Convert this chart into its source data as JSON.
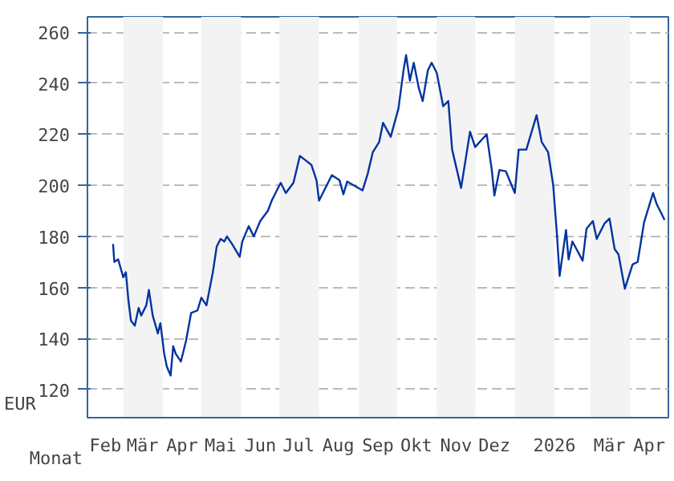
{
  "chart_data": {
    "type": "line",
    "xlabel": "Monat",
    "ylabel": "EUR",
    "x": [
      "2025-02-21",
      "2025-02-22",
      "2025-02-25",
      "2025-03-01",
      "2025-03-03",
      "2025-03-05",
      "2025-03-07",
      "2025-03-10",
      "2025-03-13",
      "2025-03-15",
      "2025-03-19",
      "2025-03-21",
      "2025-03-24",
      "2025-03-28",
      "2025-03-30",
      "2025-04-02",
      "2025-04-04",
      "2025-04-07",
      "2025-04-09",
      "2025-04-11",
      "2025-04-15",
      "2025-04-19",
      "2025-04-23",
      "2025-04-28",
      "2025-05-01",
      "2025-05-05",
      "2025-05-10",
      "2025-05-13",
      "2025-05-16",
      "2025-05-19",
      "2025-05-21",
      "2025-05-25",
      "2025-05-31",
      "2025-06-02",
      "2025-06-07",
      "2025-06-11",
      "2025-06-16",
      "2025-06-22",
      "2025-06-25",
      "2025-07-02",
      "2025-07-06",
      "2025-07-12",
      "2025-07-17",
      "2025-07-21",
      "2025-07-26",
      "2025-07-30",
      "2025-08-01",
      "2025-08-05",
      "2025-08-11",
      "2025-08-17",
      "2025-08-20",
      "2025-08-23",
      "2025-09-04",
      "2025-09-08",
      "2025-09-12",
      "2025-09-17",
      "2025-09-20",
      "2025-09-26",
      "2025-10-02",
      "2025-10-06",
      "2025-10-08",
      "2025-10-11",
      "2025-10-14",
      "2025-10-18",
      "2025-10-21",
      "2025-10-25",
      "2025-10-28",
      "2025-11-01",
      "2025-11-06",
      "2025-11-10",
      "2025-11-13",
      "2025-11-20",
      "2025-11-27",
      "2025-12-01",
      "2025-12-10",
      "2025-12-14",
      "2025-12-16",
      "2025-12-20",
      "2025-12-25",
      "2026-01-01",
      "2026-01-04",
      "2026-01-10",
      "2026-01-18",
      "2026-01-22",
      "2026-01-27",
      "2026-01-31",
      "2026-02-03",
      "2026-02-05",
      "2026-02-10",
      "2026-02-12",
      "2026-02-15",
      "2026-02-23",
      "2026-02-26",
      "2026-03-03",
      "2026-03-06",
      "2026-03-12",
      "2026-03-16",
      "2026-03-20",
      "2026-03-23",
      "2026-03-28",
      "2026-04-03",
      "2026-04-07",
      "2026-04-12",
      "2026-04-19",
      "2026-04-22",
      "2026-04-28"
    ],
    "series": [
      {
        "color": "#0033a0",
        "values": [
          177,
          170,
          171,
          164,
          166,
          155,
          147,
          145,
          152,
          149,
          153,
          159,
          149,
          142,
          146,
          134,
          129,
          125.5,
          137,
          134,
          131,
          139,
          150,
          151,
          156,
          153,
          166,
          176,
          179,
          178,
          180,
          177,
          172,
          178,
          184,
          180,
          186,
          190,
          194,
          201,
          197,
          201,
          211.5,
          210,
          208,
          202,
          194,
          198,
          204,
          202,
          196.5,
          201.5,
          198,
          204.5,
          213,
          217,
          224.5,
          219,
          230,
          245,
          251,
          241,
          248,
          238,
          233,
          245,
          248,
          244,
          231,
          233,
          214,
          199,
          221,
          215,
          220,
          206,
          196,
          206,
          205.5,
          197,
          214,
          214,
          227.5,
          217,
          213,
          200,
          180,
          164.5,
          182.5,
          171,
          178,
          170.5,
          183,
          186,
          179,
          185,
          187,
          175,
          173,
          159.5,
          169,
          170,
          185.5,
          197,
          192.5,
          186.5
        ]
      }
    ],
    "xlim": [
      "2025-02-01",
      "2026-05-01"
    ],
    "xticks": [
      {
        "value": "2025-02-15",
        "label": "Feb"
      },
      {
        "value": "2025-03-16",
        "label": "Mär"
      },
      {
        "value": "2025-04-16",
        "label": "Apr"
      },
      {
        "value": "2025-05-16",
        "label": "Mai"
      },
      {
        "value": "2025-06-16",
        "label": "Jun"
      },
      {
        "value": "2025-07-16",
        "label": "Jul"
      },
      {
        "value": "2025-08-16",
        "label": "Aug"
      },
      {
        "value": "2025-09-16",
        "label": "Sep"
      },
      {
        "value": "2025-10-16",
        "label": "Okt"
      },
      {
        "value": "2025-11-16",
        "label": "Nov"
      },
      {
        "value": "2025-12-16",
        "label": "Dez"
      },
      {
        "value": "2026-02-01",
        "label": "2026"
      },
      {
        "value": "2026-03-16",
        "label": "Mär"
      },
      {
        "value": "2026-04-16",
        "label": "Apr"
      }
    ],
    "ylim": [
      109,
      266
    ],
    "yticks": [
      120,
      140,
      160,
      180,
      200,
      220,
      240,
      260
    ],
    "grid": "y",
    "marker": "none",
    "line_style": "solid",
    "bands": [
      {
        "axis": "x",
        "from": "2025-03-01",
        "to": "2025-04-01",
        "color": "#f3f3f3"
      },
      {
        "axis": "x",
        "from": "2025-05-01",
        "to": "2025-06-01",
        "color": "#f3f3f3"
      },
      {
        "axis": "x",
        "from": "2025-07-01",
        "to": "2025-08-01",
        "color": "#f3f3f3"
      },
      {
        "axis": "x",
        "from": "2025-09-01",
        "to": "2025-10-01",
        "color": "#f3f3f3"
      },
      {
        "axis": "x",
        "from": "2025-11-01",
        "to": "2025-12-01",
        "color": "#f3f3f3"
      },
      {
        "axis": "x",
        "from": "2026-01-01",
        "to": "2026-02-01",
        "color": "#f3f3f3"
      },
      {
        "axis": "x",
        "from": "2026-03-01",
        "to": "2026-04-01",
        "color": "#f3f3f3"
      }
    ]
  }
}
